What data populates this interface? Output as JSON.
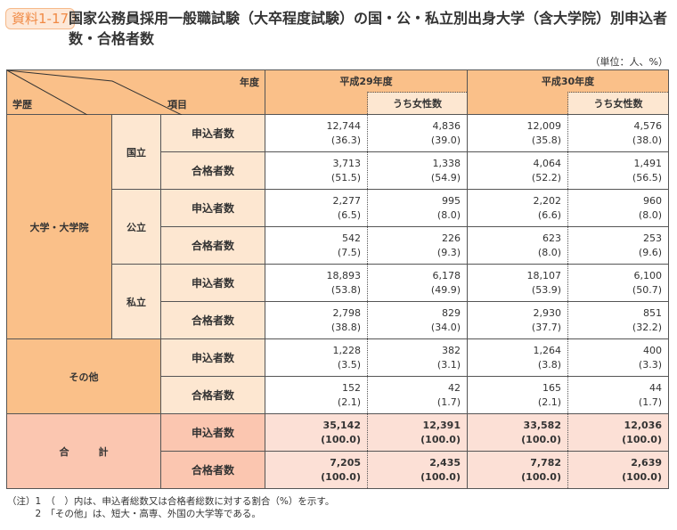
{
  "badge": "資料1-17",
  "title": "国家公務員採用一般職試験（大卒程度試験）の国・公・私立別出身大学（含大学院）別申込者数・合格者数",
  "unit": "（単位：人、%）",
  "header": {
    "nendo": "年度",
    "gakureki": "学歴",
    "koumoku": "項目",
    "years": [
      "平成29年度",
      "平成30年度"
    ],
    "women": "うち女性数"
  },
  "groups": [
    {
      "label": "大学・大学院",
      "subs": [
        {
          "label": "国立",
          "rows": [
            {
              "item": "申込者数",
              "values": [
                [
                  "12,744",
                  "(36.3)"
                ],
                [
                  "4,836",
                  "(39.0)"
                ],
                [
                  "12,009",
                  "(35.8)"
                ],
                [
                  "4,576",
                  "(38.0)"
                ]
              ]
            },
            {
              "item": "合格者数",
              "values": [
                [
                  "3,713",
                  "(51.5)"
                ],
                [
                  "1,338",
                  "(54.9)"
                ],
                [
                  "4,064",
                  "(52.2)"
                ],
                [
                  "1,491",
                  "(56.5)"
                ]
              ]
            }
          ]
        },
        {
          "label": "公立",
          "rows": [
            {
              "item": "申込者数",
              "values": [
                [
                  "2,277",
                  "(6.5)"
                ],
                [
                  "995",
                  "(8.0)"
                ],
                [
                  "2,202",
                  "(6.6)"
                ],
                [
                  "960",
                  "(8.0)"
                ]
              ]
            },
            {
              "item": "合格者数",
              "values": [
                [
                  "542",
                  "(7.5)"
                ],
                [
                  "226",
                  "(9.3)"
                ],
                [
                  "623",
                  "(8.0)"
                ],
                [
                  "253",
                  "(9.6)"
                ]
              ]
            }
          ]
        },
        {
          "label": "私立",
          "rows": [
            {
              "item": "申込者数",
              "values": [
                [
                  "18,893",
                  "(53.8)"
                ],
                [
                  "6,178",
                  "(49.9)"
                ],
                [
                  "18,107",
                  "(53.9)"
                ],
                [
                  "6,100",
                  "(50.7)"
                ]
              ]
            },
            {
              "item": "合格者数",
              "values": [
                [
                  "2,798",
                  "(38.8)"
                ],
                [
                  "829",
                  "(34.0)"
                ],
                [
                  "2,930",
                  "(37.7)"
                ],
                [
                  "851",
                  "(32.2)"
                ]
              ]
            }
          ]
        }
      ]
    },
    {
      "label": "その他",
      "rows": [
        {
          "item": "申込者数",
          "values": [
            [
              "1,228",
              "(3.5)"
            ],
            [
              "382",
              "(3.1)"
            ],
            [
              "1,264",
              "(3.8)"
            ],
            [
              "400",
              "(3.3)"
            ]
          ]
        },
        {
          "item": "合格者数",
          "values": [
            [
              "152",
              "(2.1)"
            ],
            [
              "42",
              "(1.7)"
            ],
            [
              "165",
              "(2.1)"
            ],
            [
              "44",
              "(1.7)"
            ]
          ]
        }
      ]
    },
    {
      "label": "合　　　計",
      "rows": [
        {
          "item": "申込者数",
          "values": [
            [
              "35,142",
              "(100.0)"
            ],
            [
              "12,391",
              "(100.0)"
            ],
            [
              "33,582",
              "(100.0)"
            ],
            [
              "12,036",
              "(100.0)"
            ]
          ]
        },
        {
          "item": "合格者数",
          "values": [
            [
              "7,205",
              "(100.0)"
            ],
            [
              "2,435",
              "(100.0)"
            ],
            [
              "7,782",
              "(100.0)"
            ],
            [
              "2,639",
              "(100.0)"
            ]
          ]
        }
      ]
    }
  ],
  "notes": [
    "（注）1　（　）内は、申込者総数又は合格者総数に対する割合（%）を示す。",
    "　　　2　「その他」は、短大・高専、外国の大学等である。"
  ],
  "colors": {
    "header": "#fac089",
    "subheader": "#fde7d1",
    "total": "#fbc6b0",
    "total_data": "#fce0d6",
    "badge": "#f08a45"
  }
}
